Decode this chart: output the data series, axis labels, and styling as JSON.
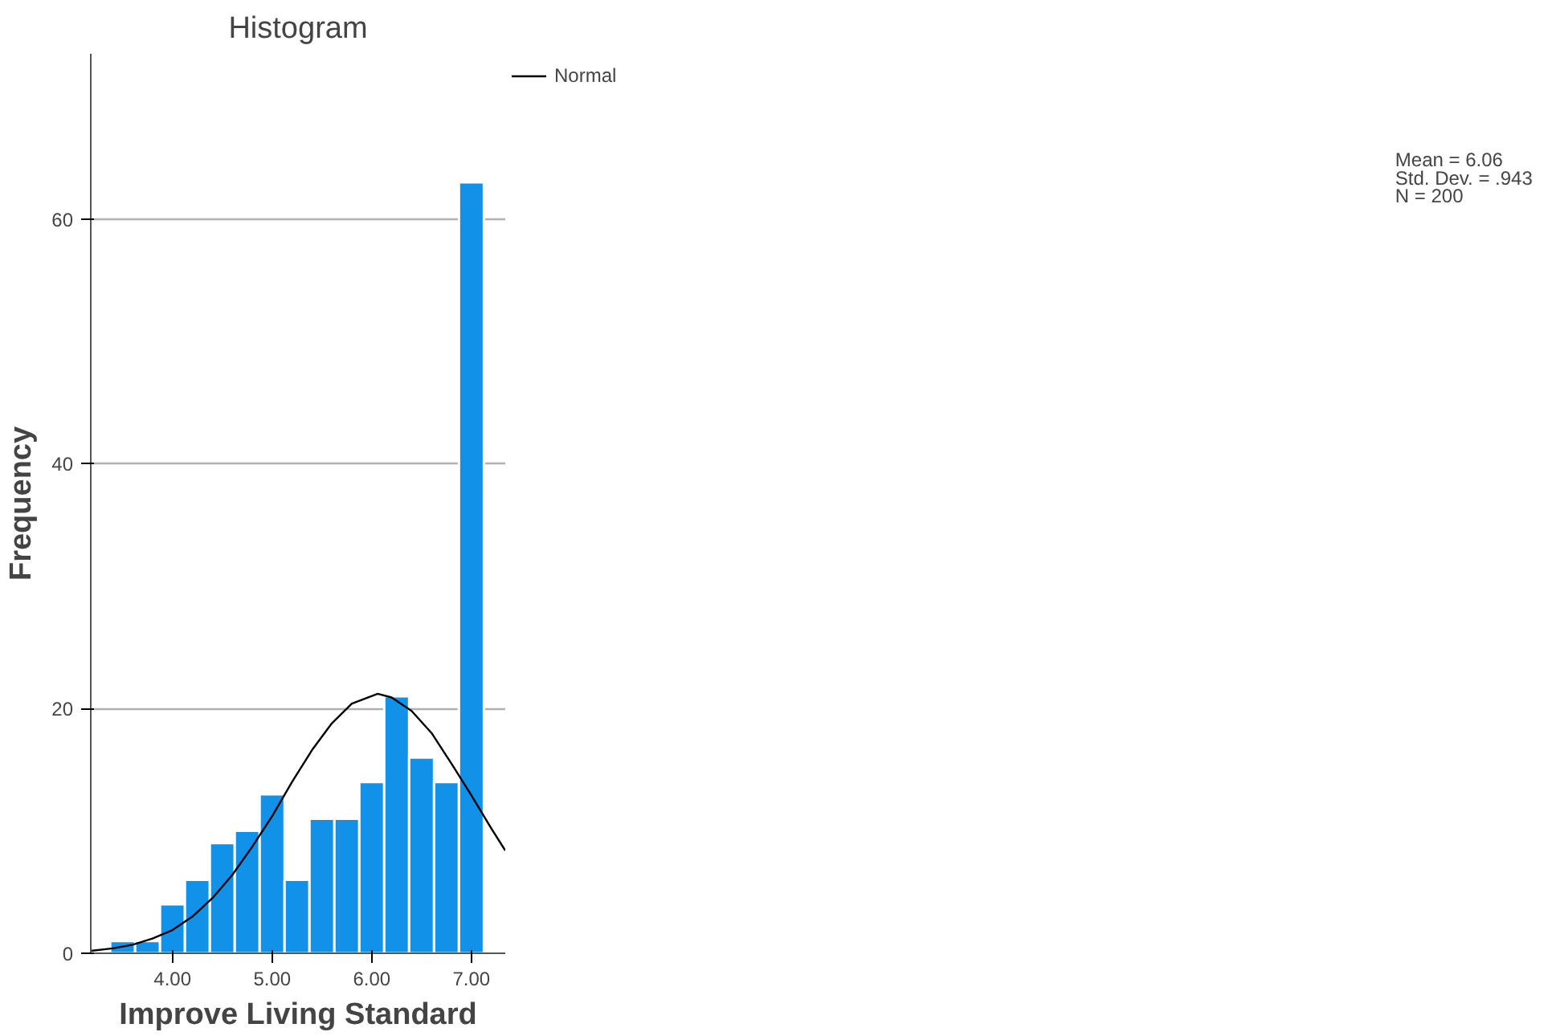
{
  "chart_data": {
    "type": "histogram",
    "title": "Histogram",
    "xlabel": "Improve Living Standard",
    "ylabel": "Frequency",
    "bins": [
      3.375,
      3.625,
      3.875,
      4.125,
      4.375,
      4.625,
      4.875,
      5.125,
      5.375,
      5.625,
      5.875,
      6.125,
      6.375,
      6.625,
      6.875,
      7.125
    ],
    "values": [
      1,
      1,
      4,
      6,
      9,
      10,
      13,
      6,
      11,
      11,
      14,
      21,
      16,
      14,
      63
    ],
    "color": "#1191e8",
    "series": [
      {
        "name": "Normal",
        "type": "line",
        "color": "#000000",
        "x": [
          3.18,
          3.4,
          3.6,
          3.8,
          4.0,
          4.2,
          4.4,
          4.6,
          4.8,
          5.0,
          5.2,
          5.4,
          5.6,
          5.8,
          6.06,
          6.2,
          6.4,
          6.6,
          6.8,
          7.0,
          7.2,
          7.34
        ],
        "values": [
          0.2,
          0.4,
          0.7,
          1.2,
          1.9,
          3.0,
          4.5,
          6.4,
          8.7,
          11.2,
          14.0,
          16.6,
          18.8,
          20.4,
          21.2,
          20.9,
          19.8,
          18.0,
          15.5,
          12.9,
          10.2,
          8.4
        ]
      }
    ],
    "xlim": [
      3.18,
      7.34
    ],
    "ylim": [
      0,
      73.5
    ],
    "xticks": [
      {
        "value": 4,
        "label": "4.00"
      },
      {
        "value": 5,
        "label": "5.00"
      },
      {
        "value": 6,
        "label": "6.00"
      },
      {
        "value": 7,
        "label": "7.00"
      }
    ],
    "yticks": [
      0,
      20,
      40,
      60
    ],
    "grid": "y",
    "legend": "top right",
    "annotations": [
      "Mean = 6.06",
      "Std. Dev. = .943",
      "N = 200"
    ]
  }
}
